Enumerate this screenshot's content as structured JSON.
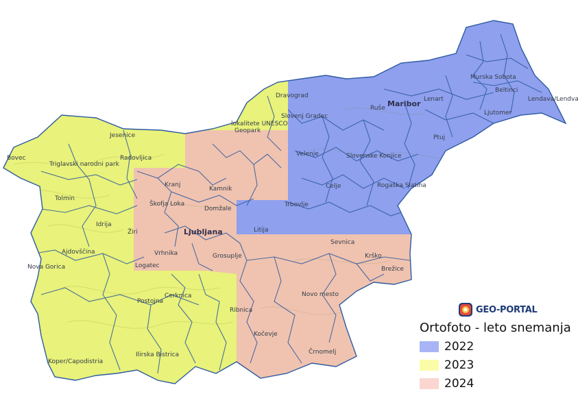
{
  "logo": {
    "text": "GEO-PORTAL"
  },
  "legend": {
    "title": "Ortofoto - leto snemanja",
    "items": [
      {
        "label": "2022",
        "color": "#a8b4f5"
      },
      {
        "label": "2023",
        "color": "#fbfca8"
      },
      {
        "label": "2024",
        "color": "#fbd6d0"
      }
    ]
  },
  "map": {
    "colors": {
      "y2022": "#8fa0ee",
      "y2023": "#e9f27a",
      "y2024": "#f0c3b0",
      "border": "#2d5aa0"
    },
    "cities": [
      "Jesenice",
      "Radovljica",
      "Bovec",
      "Triglavski narodni park",
      "Tolmin",
      "Kranj",
      "Kamnik",
      "Škofja Loka",
      "Domžale",
      "Ljubljana",
      "Idrija",
      "Vrhnika",
      "Grosuplje",
      "Logatec",
      "Cerknica",
      "Postojna",
      "Ilirska Bistrica",
      "Koper/Capodistria",
      "Ribnica",
      "Kočevje",
      "Črnomelj",
      "Novo mesto",
      "Sevnica",
      "Krško",
      "Brežice",
      "Trbovlje",
      "Celje",
      "Velenje",
      "Slovenske Konjice",
      "Rogaška Slatina",
      "Ptuj",
      "Maribor",
      "Ruše",
      "Lenart",
      "Murska Sobota",
      "Beltinci",
      "Ljutomer",
      "Lendava/Lendva",
      "Dravograd",
      "Slovenj Gradec",
      "Ajdovščina",
      "Nova Gorica",
      "lokalitete UNESCO",
      "Geopark",
      "Litija",
      "Žiri"
    ]
  }
}
